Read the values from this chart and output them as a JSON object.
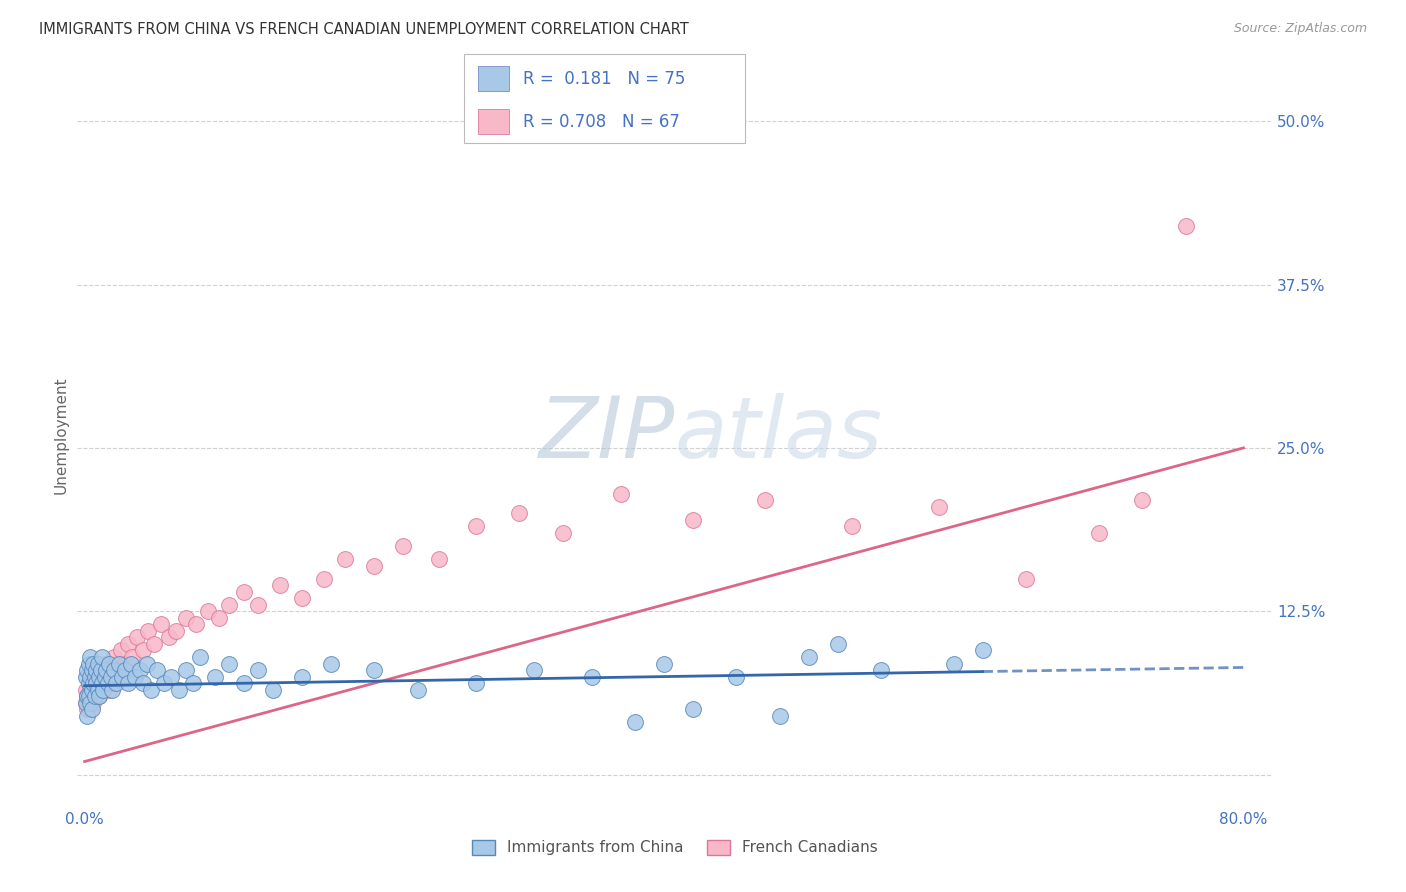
{
  "title": "IMMIGRANTS FROM CHINA VS FRENCH CANADIAN UNEMPLOYMENT CORRELATION CHART",
  "source": "Source: ZipAtlas.com",
  "ylabel": "Unemployment",
  "series1_name": "Immigrants from China",
  "series1_R": 0.181,
  "series1_N": 75,
  "series1_dot_color": "#a8c8e8",
  "series1_dot_edge": "#5588bb",
  "series1_line_color": "#3366aa",
  "series2_name": "French Canadians",
  "series2_R": 0.708,
  "series2_N": 67,
  "series2_dot_color": "#f8b8c8",
  "series2_dot_edge": "#dd7799",
  "series2_line_color": "#dd6688",
  "tick_color": "#4472c4",
  "title_color": "#333333",
  "source_color": "#999999",
  "ylabel_color": "#666666",
  "bg_color": "#ffffff",
  "grid_color": "#cccccc",
  "watermark_color": "#c5d8ea",
  "legend_text_color": "#4472c4",
  "xlim": [
    -0.005,
    0.82
  ],
  "ylim": [
    -0.025,
    0.545
  ],
  "yticks": [
    0.0,
    0.125,
    0.25,
    0.375,
    0.5
  ],
  "ytick_labels": [
    "",
    "12.5%",
    "25.0%",
    "37.5%",
    "50.0%"
  ],
  "xtick_vals": [
    0.0,
    0.1,
    0.2,
    0.3,
    0.4,
    0.5,
    0.6,
    0.7,
    0.8
  ],
  "xtick_labels": [
    "0.0%",
    "",
    "",
    "",
    "",
    "",
    "",
    "",
    "80.0%"
  ],
  "series1_x": [
    0.001,
    0.001,
    0.002,
    0.002,
    0.002,
    0.003,
    0.003,
    0.003,
    0.004,
    0.004,
    0.004,
    0.005,
    0.005,
    0.005,
    0.006,
    0.006,
    0.007,
    0.007,
    0.008,
    0.008,
    0.009,
    0.009,
    0.01,
    0.01,
    0.011,
    0.012,
    0.012,
    0.013,
    0.014,
    0.015,
    0.016,
    0.017,
    0.018,
    0.019,
    0.02,
    0.022,
    0.024,
    0.026,
    0.028,
    0.03,
    0.032,
    0.035,
    0.038,
    0.04,
    0.043,
    0.046,
    0.05,
    0.055,
    0.06,
    0.065,
    0.07,
    0.075,
    0.08,
    0.09,
    0.1,
    0.11,
    0.12,
    0.13,
    0.15,
    0.17,
    0.2,
    0.23,
    0.27,
    0.31,
    0.35,
    0.4,
    0.45,
    0.5,
    0.55,
    0.6,
    0.38,
    0.42,
    0.48,
    0.52,
    0.62
  ],
  "series1_y": [
    0.055,
    0.075,
    0.06,
    0.08,
    0.045,
    0.07,
    0.085,
    0.06,
    0.075,
    0.055,
    0.09,
    0.065,
    0.08,
    0.05,
    0.07,
    0.085,
    0.075,
    0.06,
    0.08,
    0.07,
    0.065,
    0.085,
    0.075,
    0.06,
    0.08,
    0.07,
    0.09,
    0.065,
    0.075,
    0.08,
    0.07,
    0.085,
    0.075,
    0.065,
    0.08,
    0.07,
    0.085,
    0.075,
    0.08,
    0.07,
    0.085,
    0.075,
    0.08,
    0.07,
    0.085,
    0.065,
    0.08,
    0.07,
    0.075,
    0.065,
    0.08,
    0.07,
    0.09,
    0.075,
    0.085,
    0.07,
    0.08,
    0.065,
    0.075,
    0.085,
    0.08,
    0.065,
    0.07,
    0.08,
    0.075,
    0.085,
    0.075,
    0.09,
    0.08,
    0.085,
    0.04,
    0.05,
    0.045,
    0.1,
    0.095
  ],
  "series2_x": [
    0.001,
    0.001,
    0.002,
    0.002,
    0.003,
    0.003,
    0.004,
    0.004,
    0.005,
    0.005,
    0.006,
    0.006,
    0.007,
    0.007,
    0.008,
    0.008,
    0.009,
    0.01,
    0.01,
    0.011,
    0.012,
    0.013,
    0.014,
    0.015,
    0.016,
    0.017,
    0.018,
    0.019,
    0.02,
    0.022,
    0.025,
    0.028,
    0.03,
    0.033,
    0.036,
    0.04,
    0.044,
    0.048,
    0.053,
    0.058,
    0.063,
    0.07,
    0.077,
    0.085,
    0.093,
    0.1,
    0.11,
    0.12,
    0.135,
    0.15,
    0.165,
    0.18,
    0.2,
    0.22,
    0.245,
    0.27,
    0.3,
    0.33,
    0.37,
    0.42,
    0.47,
    0.53,
    0.59,
    0.65,
    0.7,
    0.73,
    0.76
  ],
  "series2_y": [
    0.055,
    0.065,
    0.06,
    0.05,
    0.07,
    0.055,
    0.065,
    0.05,
    0.075,
    0.06,
    0.055,
    0.07,
    0.065,
    0.08,
    0.06,
    0.075,
    0.065,
    0.07,
    0.06,
    0.075,
    0.065,
    0.08,
    0.07,
    0.085,
    0.075,
    0.065,
    0.08,
    0.07,
    0.09,
    0.08,
    0.095,
    0.085,
    0.1,
    0.09,
    0.105,
    0.095,
    0.11,
    0.1,
    0.115,
    0.105,
    0.11,
    0.12,
    0.115,
    0.125,
    0.12,
    0.13,
    0.14,
    0.13,
    0.145,
    0.135,
    0.15,
    0.165,
    0.16,
    0.175,
    0.165,
    0.19,
    0.2,
    0.185,
    0.215,
    0.195,
    0.21,
    0.19,
    0.205,
    0.15,
    0.185,
    0.21,
    0.42
  ],
  "pink_trend_x0": 0.0,
  "pink_trend_y0": 0.01,
  "pink_trend_x1": 0.8,
  "pink_trend_y1": 0.25,
  "blue_trend_x0": 0.0,
  "blue_trend_y0": 0.068,
  "blue_trend_x1": 0.8,
  "blue_trend_y1": 0.082
}
